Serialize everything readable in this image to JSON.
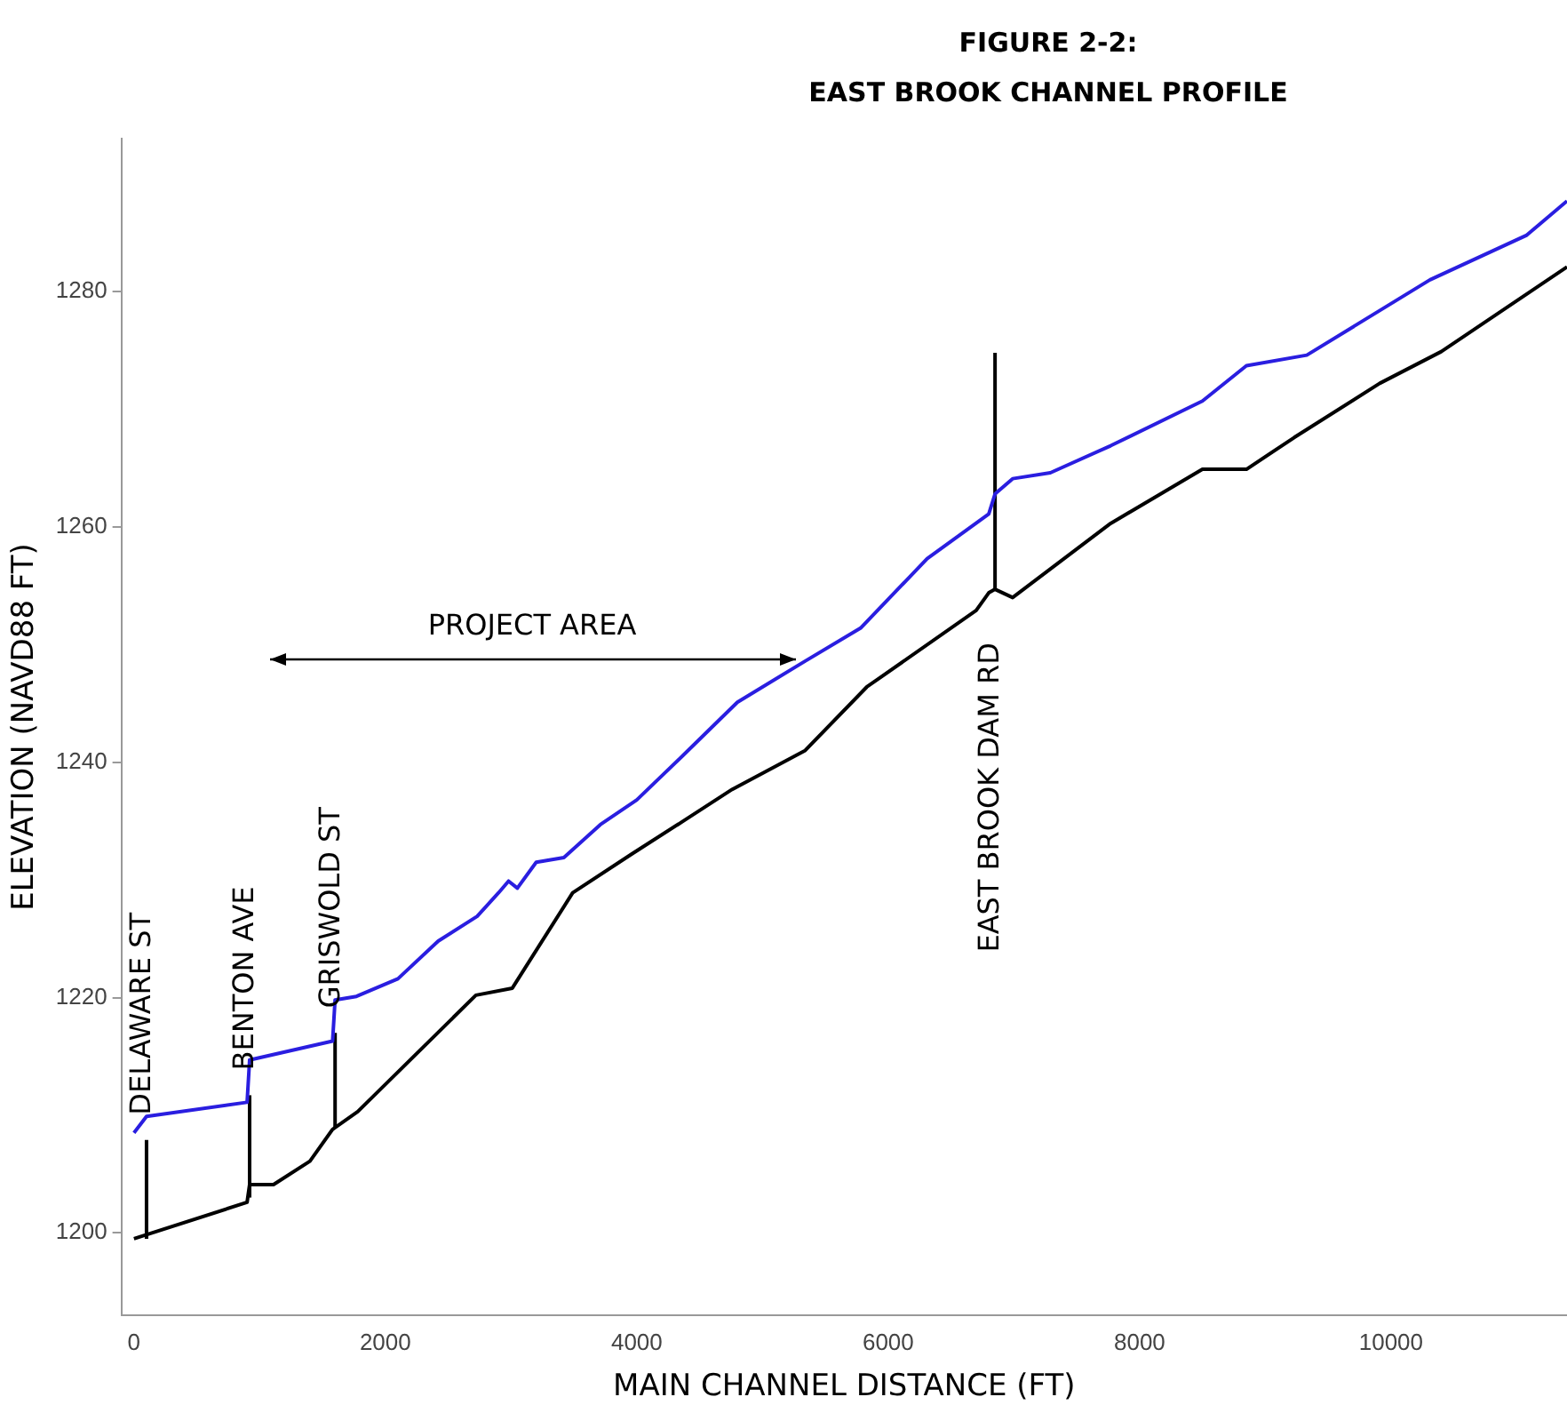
{
  "chart_data": {
    "type": "line",
    "title": "FIGURE 2-2:",
    "subtitle": "EAST BROOK CHANNEL PROFILE",
    "xlabel": "MAIN CHANNEL DISTANCE (FT)",
    "ylabel": "ELEVATION (NAVD88 FT)",
    "xlim": [
      -100,
      11400
    ],
    "xticks": [
      0,
      2000,
      4000,
      6000,
      8000,
      10000
    ],
    "ylim": [
      1193,
      1293
    ],
    "yticks": [
      1200,
      1220,
      1240,
      1260,
      1280
    ],
    "grid": false,
    "legend": false,
    "marker": "none",
    "line_style": "solid",
    "series": [
      {
        "color": "#2a1ee0",
        "x": [
          0,
          100,
          900,
          920,
          1580,
          1600,
          1770,
          2100,
          2420,
          2730,
          2900,
          2980,
          3050,
          3200,
          3420,
          3710,
          4000,
          4370,
          4800,
          5340,
          5780,
          6310,
          6800,
          6850,
          6990,
          7290,
          7770,
          8500,
          8850,
          9330,
          10310,
          11080,
          11400
        ],
        "values": [
          1208.5,
          1209.9,
          1211.1,
          1214.7,
          1216.3,
          1219.8,
          1220.1,
          1221.6,
          1224.8,
          1226.9,
          1228.9,
          1229.9,
          1229.3,
          1231.5,
          1231.9,
          1234.7,
          1236.8,
          1240.6,
          1245.1,
          1248.6,
          1251.4,
          1257.3,
          1261.1,
          1262.8,
          1264.1,
          1264.6,
          1266.9,
          1270.7,
          1273.7,
          1274.6,
          1281.0,
          1284.8,
          1287.7
        ]
      },
      {
        "color": "#000000",
        "x": [
          0,
          900,
          920,
          1110,
          1400,
          1580,
          1780,
          2720,
          3010,
          3490,
          3960,
          4370,
          4760,
          5340,
          5830,
          6700,
          6800,
          6850,
          6990,
          7770,
          8500,
          8850,
          9230,
          9910,
          10400,
          11400
        ],
        "values": [
          1199.5,
          1202.6,
          1204.1,
          1204.1,
          1206.1,
          1208.8,
          1210.3,
          1220.2,
          1220.8,
          1228.9,
          1232.2,
          1235.0,
          1237.7,
          1241.0,
          1246.4,
          1252.9,
          1254.4,
          1254.7,
          1254.0,
          1260.3,
          1264.9,
          1264.9,
          1267.6,
          1272.2,
          1274.9,
          1282.1
        ]
      },
      {
        "color": "#000000",
        "x": [
          100,
          100
        ],
        "values": [
          1199.5,
          1207.9
        ]
      },
      {
        "color": "#000000",
        "x": [
          920,
          920
        ],
        "values": [
          1203.0,
          1211.7
        ]
      },
      {
        "color": "#000000",
        "x": [
          1600,
          1600
        ],
        "values": [
          1209.0,
          1217.0
        ]
      },
      {
        "color": "#000000",
        "x": [
          6850,
          6850
        ],
        "values": [
          1254.7,
          1274.8
        ]
      }
    ],
    "annotations": [
      "DELAWARE ST",
      "BENTON AVE",
      "GRISWOLD ST",
      "EAST BROOK DAM RD",
      "PROJECT AREA"
    ]
  }
}
